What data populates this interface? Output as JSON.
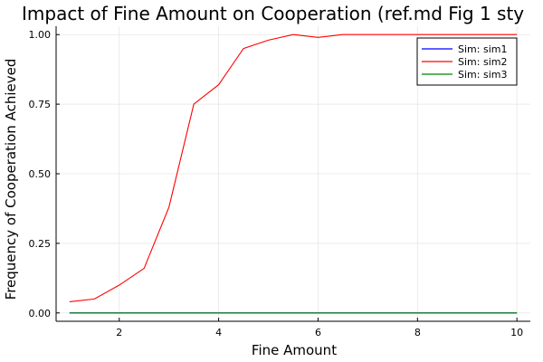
{
  "chart_data": {
    "type": "line",
    "title": "Impact of Fine Amount on Cooperation (ref.md Fig 1 sty",
    "xlabel": "Fine Amount",
    "ylabel": "Frequency of Cooperation Achieved",
    "xlim": [
      0.73,
      10.27
    ],
    "ylim": [
      -0.03,
      1.03
    ],
    "xticks": [
      2,
      4,
      6,
      8,
      10
    ],
    "xtick_labels": [
      "2",
      "4",
      "6",
      "8",
      "10"
    ],
    "yticks": [
      0,
      0.25,
      0.5,
      0.75,
      1.0
    ],
    "ytick_labels": [
      "0.00",
      "0.25",
      "0.50",
      "0.75",
      "1.00"
    ],
    "grid": true,
    "legend_position": "top-right",
    "x": [
      1.0,
      1.5,
      2.0,
      2.5,
      3.0,
      3.5,
      4.0,
      4.5,
      5.0,
      5.5,
      6.0,
      6.5,
      7.0,
      7.5,
      8.0,
      8.5,
      9.0,
      9.5,
      10.0
    ],
    "series": [
      {
        "name": "Sim: sim1",
        "color": "#0000ff",
        "values": [
          0,
          0,
          0,
          0,
          0,
          0,
          0,
          0,
          0,
          0,
          0,
          0,
          0,
          0,
          0,
          0,
          0,
          0,
          0
        ]
      },
      {
        "name": "Sim: sim2",
        "color": "#ff0000",
        "values": [
          0.04,
          0.05,
          0.1,
          0.16,
          0.38,
          0.75,
          0.82,
          0.95,
          0.98,
          1.0,
          0.99,
          1.0,
          1.0,
          1.0,
          1.0,
          1.0,
          1.0,
          1.0,
          1.0
        ]
      },
      {
        "name": "Sim: sim3",
        "color": "#008000",
        "values": [
          0,
          0,
          0,
          0,
          0,
          0,
          0,
          0,
          0,
          0,
          0,
          0,
          0,
          0,
          0,
          0,
          0,
          0,
          0
        ]
      }
    ]
  }
}
